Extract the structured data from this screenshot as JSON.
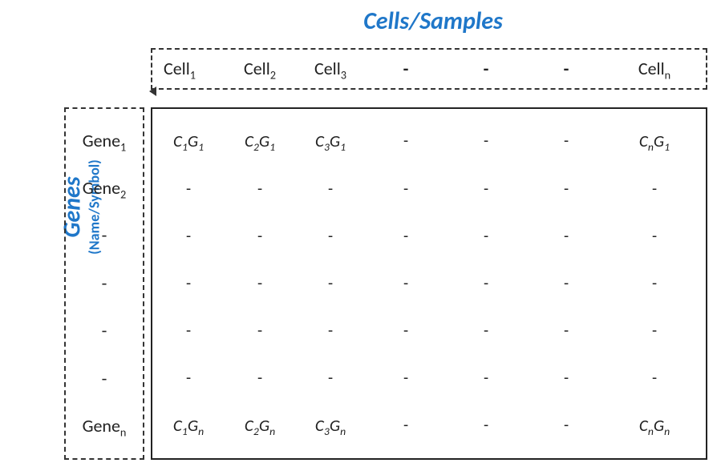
{
  "diagram": {
    "type": "table",
    "background_color": "#ffffff",
    "text_color": "#222222",
    "accent_color": "#1f77c9",
    "dashed_border_color": "#333333",
    "solid_border_color": "#222222",
    "title_fontsize": 30,
    "body_fontsize": 21,
    "col_title": "Cells/Samples",
    "row_title_main": "Genes",
    "row_title_sub": "(Name/Symbol)",
    "col_headers": [
      {
        "html": "Cell<sub>1</sub>"
      },
      {
        "html": "Cell<sub>2</sub>"
      },
      {
        "html": "Cell<sub>3</sub>"
      },
      {
        "html": "-"
      },
      {
        "html": "-"
      },
      {
        "html": "-"
      },
      {
        "html": "Cell<sub>n</sub>"
      }
    ],
    "row_headers": [
      {
        "html": "Gene<sub>1</sub>"
      },
      {
        "html": "Gene<sub>2</sub>"
      },
      {
        "html": "-"
      },
      {
        "html": "-"
      },
      {
        "html": "-"
      },
      {
        "html": "-"
      },
      {
        "html": "Gene<sub>n</sub>"
      }
    ],
    "rows": [
      [
        {
          "html": "C<sub>1</sub>G<sub>1</sub>",
          "ital": true
        },
        {
          "html": "C<sub>2</sub>G<sub>1</sub>",
          "ital": true
        },
        {
          "html": "C<sub>3</sub>G<sub>1</sub>",
          "ital": true
        },
        {
          "html": "-",
          "ital": false
        },
        {
          "html": "-",
          "ital": false
        },
        {
          "html": "-",
          "ital": false
        },
        {
          "html": "C<sub>n</sub>G<sub>1</sub>",
          "ital": true
        }
      ],
      [
        {
          "html": "-"
        },
        {
          "html": "-"
        },
        {
          "html": "-"
        },
        {
          "html": "-"
        },
        {
          "html": "-"
        },
        {
          "html": "-"
        },
        {
          "html": "-"
        }
      ],
      [
        {
          "html": "-"
        },
        {
          "html": "-"
        },
        {
          "html": "-"
        },
        {
          "html": "-"
        },
        {
          "html": "-"
        },
        {
          "html": "-"
        },
        {
          "html": "-"
        }
      ],
      [
        {
          "html": "-"
        },
        {
          "html": "-"
        },
        {
          "html": "-"
        },
        {
          "html": "-"
        },
        {
          "html": "-"
        },
        {
          "html": "-"
        },
        {
          "html": "-"
        }
      ],
      [
        {
          "html": "-"
        },
        {
          "html": "-"
        },
        {
          "html": "-"
        },
        {
          "html": "-"
        },
        {
          "html": "-"
        },
        {
          "html": "-"
        },
        {
          "html": "-"
        }
      ],
      [
        {
          "html": "-"
        },
        {
          "html": "-"
        },
        {
          "html": "-"
        },
        {
          "html": "-"
        },
        {
          "html": "-"
        },
        {
          "html": "-"
        },
        {
          "html": "-"
        }
      ],
      [
        {
          "html": "C<sub>1</sub>G<sub>n</sub>",
          "ital": true
        },
        {
          "html": "C<sub>2</sub>G<sub>n</sub>",
          "ital": true
        },
        {
          "html": "C<sub>3</sub>G<sub>n</sub>",
          "ital": true
        },
        {
          "html": "-",
          "ital": false
        },
        {
          "html": "-",
          "ital": false
        },
        {
          "html": "-",
          "ital": false
        },
        {
          "html": "C<sub>n</sub>G<sub>n</sub>",
          "ital": true
        }
      ]
    ]
  }
}
